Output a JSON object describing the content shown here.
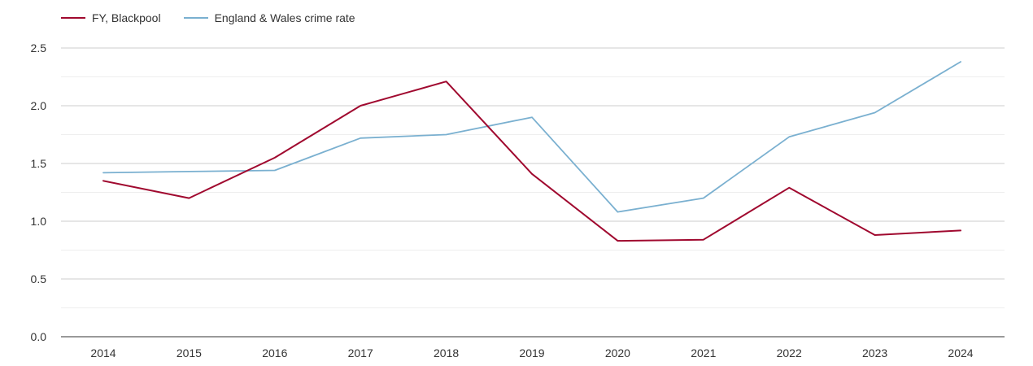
{
  "chart_data": {
    "type": "line",
    "title": "",
    "xlabel": "",
    "ylabel": "",
    "categories": [
      "2014",
      "2015",
      "2016",
      "2017",
      "2018",
      "2019",
      "2020",
      "2021",
      "2022",
      "2023",
      "2024"
    ],
    "ylim": [
      0,
      2.5
    ],
    "yticks": [
      "0.0",
      "0.5",
      "1.0",
      "1.5",
      "2.0",
      "2.5"
    ],
    "grid": true,
    "legend_position": "top-left",
    "series": [
      {
        "name": "FY, Blackpool",
        "color": "#a0092f",
        "values": [
          1.35,
          1.2,
          1.55,
          2.0,
          2.21,
          1.41,
          0.83,
          0.84,
          1.29,
          0.88,
          0.92
        ]
      },
      {
        "name": "England & Wales crime rate",
        "color": "#7ab0d0",
        "values": [
          1.42,
          1.43,
          1.44,
          1.72,
          1.75,
          1.9,
          1.08,
          1.2,
          1.73,
          1.94,
          2.38
        ]
      }
    ]
  }
}
